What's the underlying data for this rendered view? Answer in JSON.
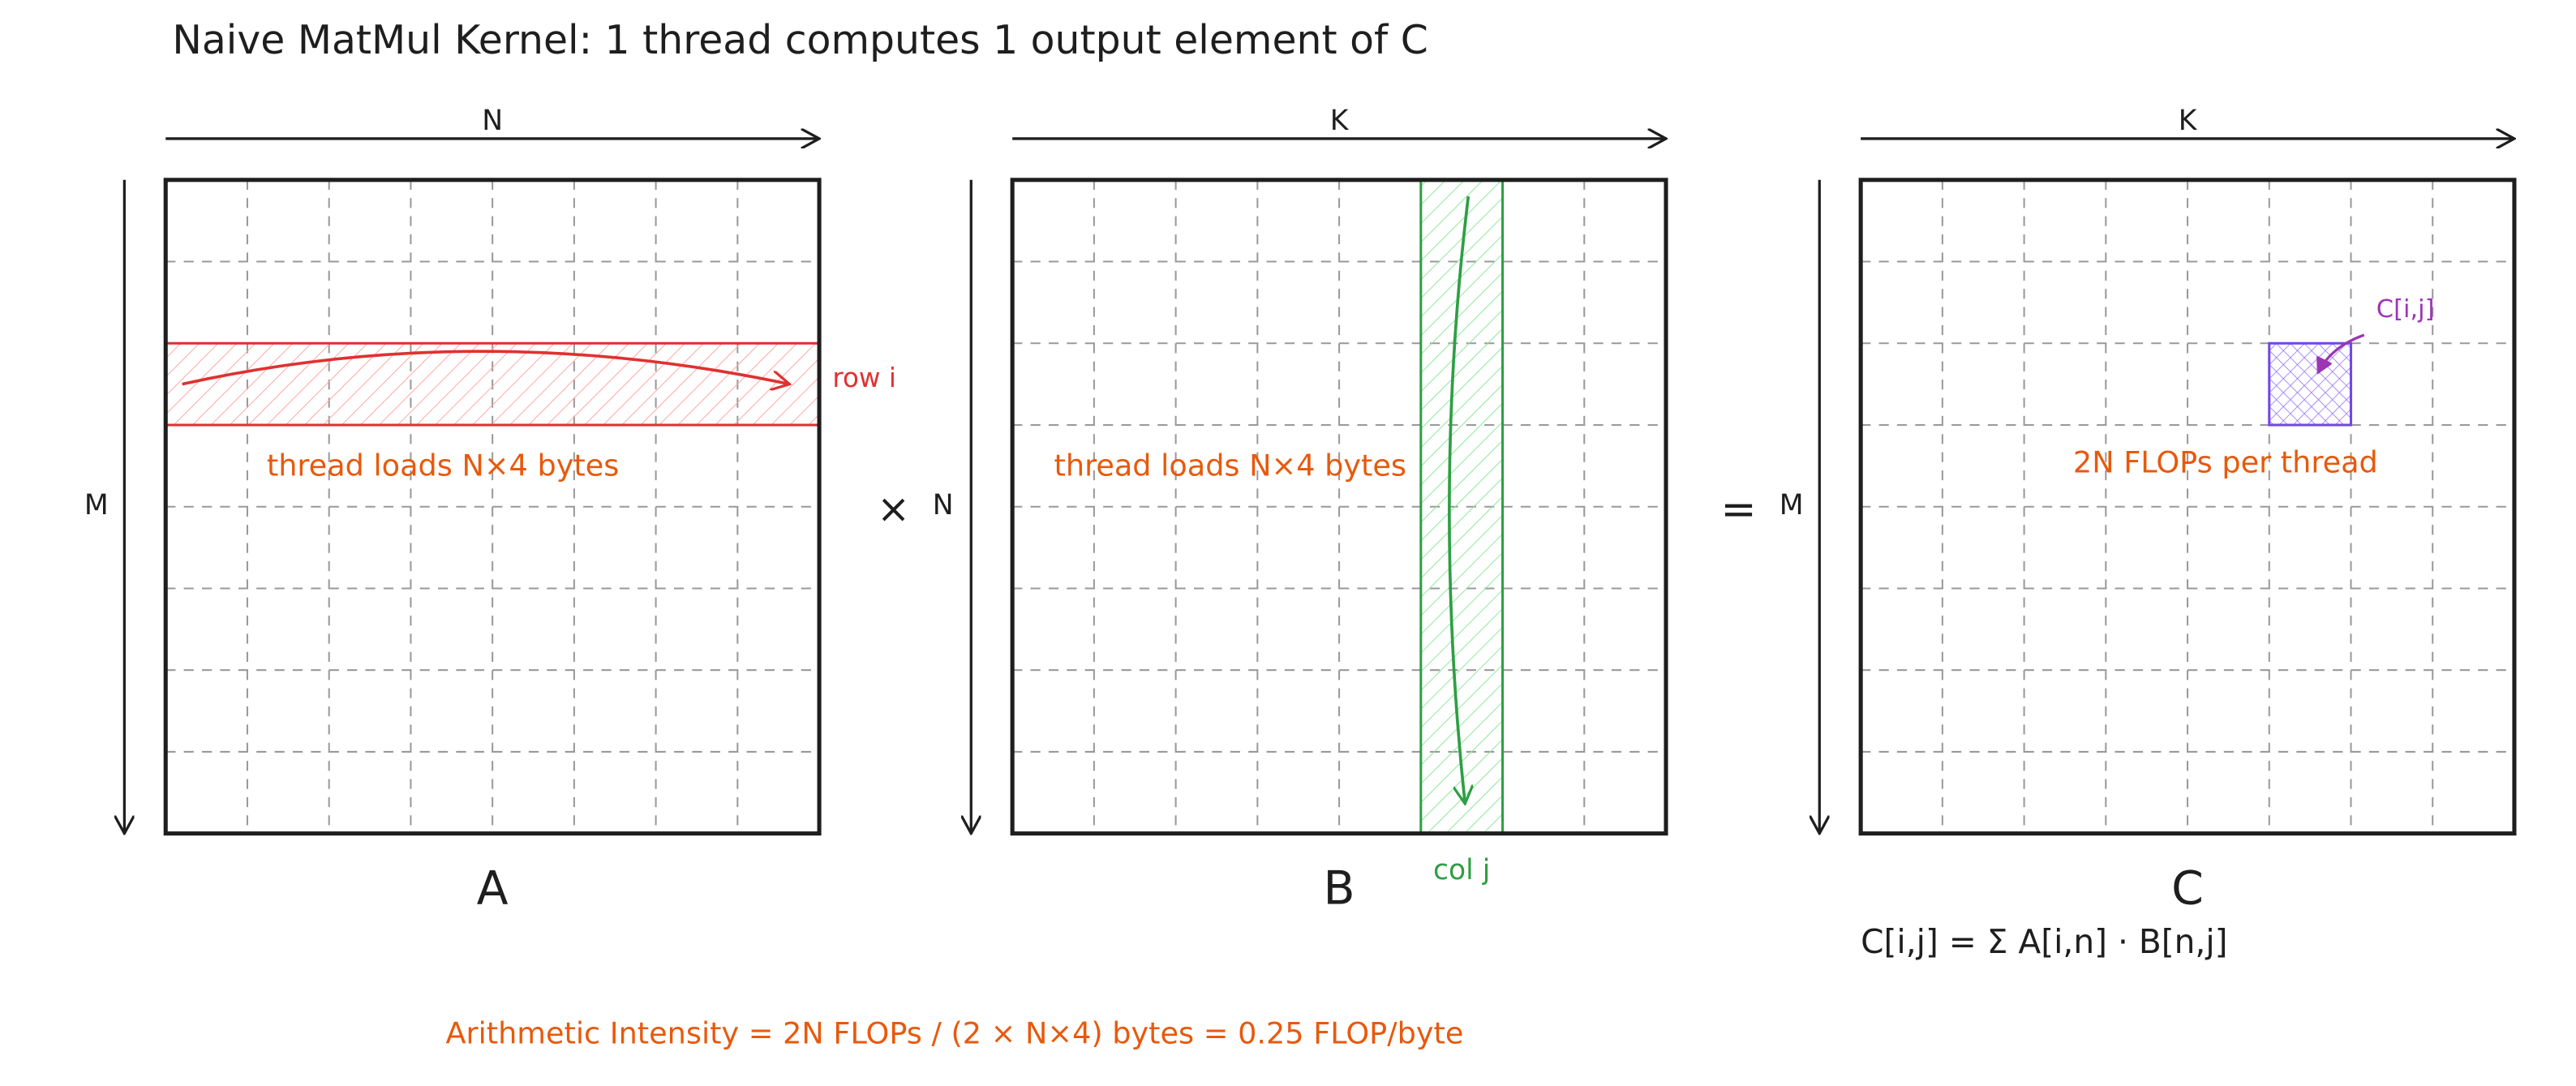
{
  "title": "Naive MatMul Kernel: 1 thread computes 1 output element of C",
  "matrices": [
    {
      "name": "A",
      "top_label": "N",
      "left_label": "M",
      "highlight_label": "row i",
      "note": "thread loads N×4 bytes"
    },
    {
      "name": "B",
      "top_label": "K",
      "left_label": "N",
      "highlight_label": "col j",
      "note": "thread loads N×4 bytes"
    },
    {
      "name": "C",
      "top_label": "K",
      "left_label": "M",
      "highlight_label": "C[i,j]",
      "note": "2N FLOPs per thread",
      "formula": "C[i,j] = Σ A[i,n] · B[n,j]"
    }
  ],
  "operators": [
    "×",
    "="
  ],
  "footer": "Arithmetic Intensity = 2N FLOPs / (2 × N×4) bytes = 0.25 FLOP/byte"
}
